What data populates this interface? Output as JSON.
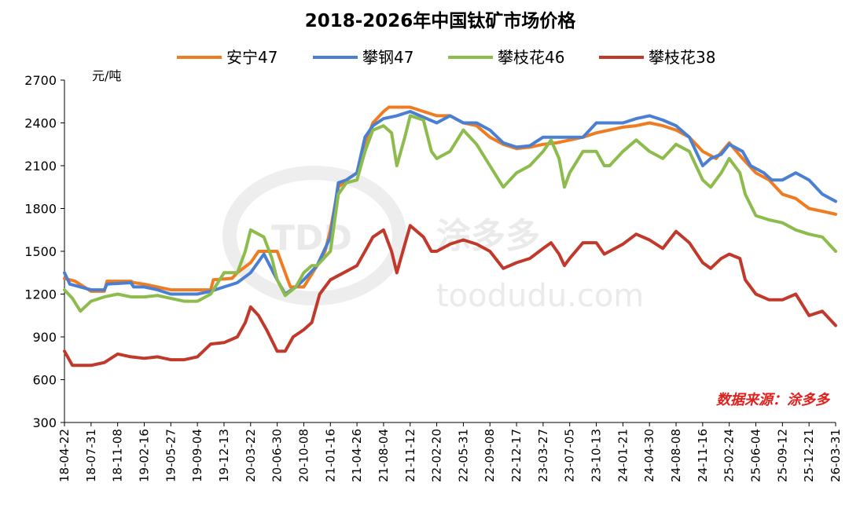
{
  "chart_data": {
    "type": "line",
    "title": "2018-2026年中国钛矿市场价格",
    "ylabel": "元/吨",
    "xlabel": "",
    "ylim": [
      300,
      2700
    ],
    "yticks": [
      "2700",
      "2400",
      "2100",
      "1800",
      "1500",
      "1200",
      "900",
      "600",
      "300"
    ],
    "xticks": [
      "18-04-22",
      "18-07-31",
      "18-11-08",
      "19-02-16",
      "19-05-27",
      "19-09-04",
      "19-12-13",
      "20-03-22",
      "20-06-30",
      "20-10-08",
      "21-01-16",
      "21-04-26",
      "21-08-04",
      "21-11-12",
      "22-02-20",
      "22-05-31",
      "22-09-08",
      "22-12-17",
      "23-03-27",
      "23-07-05",
      "23-10-13",
      "24-01-21",
      "24-04-30",
      "24-08-08",
      "24-11-16",
      "25-02-24",
      "25-06-04",
      "25-09-12",
      "25-12-21",
      "26-03-31"
    ],
    "legend_position": "top",
    "grid": false,
    "source_note": "数据来源：涂多多",
    "watermark": {
      "brand": "涂多多",
      "site": "toodudu.com"
    },
    "series": [
      {
        "name": "安宁47",
        "color": "#f07c22",
        "points": [
          [
            0,
            1310
          ],
          [
            0.4,
            1290
          ],
          [
            1,
            1220
          ],
          [
            1.5,
            1220
          ],
          [
            1.6,
            1290
          ],
          [
            2.5,
            1290
          ],
          [
            2.6,
            1280
          ],
          [
            3,
            1270
          ],
          [
            3.5,
            1250
          ],
          [
            4,
            1230
          ],
          [
            5,
            1230
          ],
          [
            5.5,
            1230
          ],
          [
            5.6,
            1300
          ],
          [
            6.3,
            1310
          ],
          [
            6.5,
            1350
          ],
          [
            7,
            1420
          ],
          [
            7.3,
            1500
          ],
          [
            8,
            1500
          ],
          [
            8.5,
            1250
          ],
          [
            9,
            1250
          ],
          [
            9.5,
            1400
          ],
          [
            9.8,
            1500
          ],
          [
            10,
            1650
          ],
          [
            10.3,
            1950
          ],
          [
            10.6,
            2000
          ],
          [
            11,
            2050
          ],
          [
            11.3,
            2250
          ],
          [
            11.6,
            2400
          ],
          [
            12,
            2480
          ],
          [
            12.2,
            2510
          ],
          [
            13,
            2510
          ],
          [
            13.5,
            2480
          ],
          [
            14,
            2450
          ],
          [
            14.5,
            2450
          ],
          [
            15,
            2400
          ],
          [
            15.5,
            2380
          ],
          [
            16,
            2300
          ],
          [
            16.5,
            2250
          ],
          [
            17,
            2220
          ],
          [
            17.5,
            2230
          ],
          [
            18,
            2250
          ],
          [
            18.5,
            2260
          ],
          [
            19,
            2280
          ],
          [
            19.5,
            2300
          ],
          [
            20,
            2330
          ],
          [
            20.5,
            2350
          ],
          [
            21,
            2370
          ],
          [
            21.5,
            2380
          ],
          [
            22,
            2400
          ],
          [
            22.5,
            2380
          ],
          [
            23,
            2350
          ],
          [
            23.5,
            2300
          ],
          [
            24,
            2200
          ],
          [
            24.5,
            2150
          ],
          [
            25,
            2260
          ],
          [
            25.5,
            2150
          ],
          [
            26,
            2050
          ],
          [
            26.5,
            2000
          ],
          [
            27,
            1900
          ],
          [
            27.5,
            1870
          ],
          [
            28,
            1800
          ],
          [
            28.5,
            1780
          ],
          [
            29,
            1760
          ]
        ]
      },
      {
        "name": "攀钢47",
        "color": "#4a7fd1",
        "points": [
          [
            0,
            1350
          ],
          [
            0.2,
            1270
          ],
          [
            1,
            1230
          ],
          [
            1.5,
            1230
          ],
          [
            1.6,
            1270
          ],
          [
            2.5,
            1280
          ],
          [
            2.6,
            1250
          ],
          [
            3,
            1250
          ],
          [
            3.5,
            1230
          ],
          [
            4,
            1200
          ],
          [
            5,
            1200
          ],
          [
            5.5,
            1220
          ],
          [
            6,
            1250
          ],
          [
            6.5,
            1280
          ],
          [
            7,
            1350
          ],
          [
            7.5,
            1480
          ],
          [
            8,
            1300
          ],
          [
            8.3,
            1200
          ],
          [
            8.7,
            1250
          ],
          [
            9,
            1300
          ],
          [
            9.5,
            1400
          ],
          [
            10,
            1600
          ],
          [
            10.3,
            1980
          ],
          [
            10.6,
            2000
          ],
          [
            11,
            2050
          ],
          [
            11.3,
            2300
          ],
          [
            11.6,
            2380
          ],
          [
            12,
            2430
          ],
          [
            12.5,
            2450
          ],
          [
            13,
            2480
          ],
          [
            14,
            2400
          ],
          [
            14.5,
            2450
          ],
          [
            15,
            2400
          ],
          [
            15.5,
            2400
          ],
          [
            16,
            2350
          ],
          [
            16.5,
            2260
          ],
          [
            17,
            2230
          ],
          [
            17.5,
            2240
          ],
          [
            18,
            2300
          ],
          [
            18.5,
            2300
          ],
          [
            19,
            2300
          ],
          [
            19.5,
            2300
          ],
          [
            20,
            2400
          ],
          [
            20.5,
            2400
          ],
          [
            21,
            2400
          ],
          [
            21.5,
            2430
          ],
          [
            22,
            2450
          ],
          [
            22.5,
            2420
          ],
          [
            23,
            2380
          ],
          [
            23.5,
            2300
          ],
          [
            24,
            2100
          ],
          [
            24.3,
            2150
          ],
          [
            24.7,
            2180
          ],
          [
            25,
            2250
          ],
          [
            25.5,
            2200
          ],
          [
            25.8,
            2100
          ],
          [
            26.3,
            2050
          ],
          [
            26.6,
            2000
          ],
          [
            27,
            2000
          ],
          [
            27.5,
            2050
          ],
          [
            28,
            2000
          ],
          [
            28.5,
            1900
          ],
          [
            29,
            1850
          ]
        ]
      },
      {
        "name": "攀枝花46",
        "color": "#8dbb4c",
        "points": [
          [
            0,
            1230
          ],
          [
            0.3,
            1170
          ],
          [
            0.6,
            1080
          ],
          [
            1,
            1150
          ],
          [
            1.5,
            1180
          ],
          [
            2,
            1200
          ],
          [
            2.5,
            1180
          ],
          [
            3,
            1180
          ],
          [
            3.5,
            1190
          ],
          [
            4,
            1170
          ],
          [
            4.5,
            1150
          ],
          [
            5,
            1150
          ],
          [
            5.5,
            1200
          ],
          [
            6,
            1350
          ],
          [
            6.5,
            1350
          ],
          [
            6.8,
            1500
          ],
          [
            7,
            1650
          ],
          [
            7.5,
            1600
          ],
          [
            7.8,
            1450
          ],
          [
            8,
            1300
          ],
          [
            8.3,
            1190
          ],
          [
            8.7,
            1250
          ],
          [
            9,
            1350
          ],
          [
            9.3,
            1400
          ],
          [
            9.5,
            1400
          ],
          [
            10,
            1500
          ],
          [
            10.3,
            1900
          ],
          [
            10.6,
            1980
          ],
          [
            11,
            2000
          ],
          [
            11.3,
            2200
          ],
          [
            11.6,
            2350
          ],
          [
            12,
            2380
          ],
          [
            12.3,
            2330
          ],
          [
            12.5,
            2100
          ],
          [
            12.8,
            2300
          ],
          [
            13,
            2450
          ],
          [
            13.5,
            2420
          ],
          [
            13.8,
            2200
          ],
          [
            14,
            2150
          ],
          [
            14.5,
            2200
          ],
          [
            15,
            2350
          ],
          [
            15.5,
            2250
          ],
          [
            16,
            2100
          ],
          [
            16.5,
            1950
          ],
          [
            17,
            2050
          ],
          [
            17.5,
            2100
          ],
          [
            18,
            2200
          ],
          [
            18.3,
            2280
          ],
          [
            18.6,
            2150
          ],
          [
            18.8,
            1950
          ],
          [
            19,
            2050
          ],
          [
            19.5,
            2200
          ],
          [
            20,
            2200
          ],
          [
            20.3,
            2100
          ],
          [
            20.5,
            2100
          ],
          [
            21,
            2200
          ],
          [
            21.5,
            2280
          ],
          [
            22,
            2200
          ],
          [
            22.5,
            2150
          ],
          [
            23,
            2250
          ],
          [
            23.5,
            2200
          ],
          [
            24,
            2000
          ],
          [
            24.3,
            1950
          ],
          [
            24.7,
            2050
          ],
          [
            25,
            2150
          ],
          [
            25.4,
            2050
          ],
          [
            25.6,
            1900
          ],
          [
            26,
            1750
          ],
          [
            26.5,
            1720
          ],
          [
            27,
            1700
          ],
          [
            27.5,
            1650
          ],
          [
            28,
            1620
          ],
          [
            28.5,
            1600
          ],
          [
            29,
            1500
          ]
        ]
      },
      {
        "name": "攀枝花38",
        "color": "#c0392b",
        "points": [
          [
            0,
            800
          ],
          [
            0.3,
            700
          ],
          [
            1,
            700
          ],
          [
            1.5,
            720
          ],
          [
            2,
            780
          ],
          [
            2.5,
            760
          ],
          [
            3,
            750
          ],
          [
            3.5,
            760
          ],
          [
            4,
            740
          ],
          [
            4.5,
            740
          ],
          [
            5,
            760
          ],
          [
            5.5,
            850
          ],
          [
            6,
            860
          ],
          [
            6.5,
            900
          ],
          [
            6.8,
            1000
          ],
          [
            7,
            1110
          ],
          [
            7.3,
            1050
          ],
          [
            7.6,
            950
          ],
          [
            8,
            800
          ],
          [
            8.3,
            800
          ],
          [
            8.6,
            900
          ],
          [
            9,
            950
          ],
          [
            9.3,
            1000
          ],
          [
            9.6,
            1200
          ],
          [
            10,
            1300
          ],
          [
            10.5,
            1350
          ],
          [
            11,
            1400
          ],
          [
            11.3,
            1500
          ],
          [
            11.6,
            1600
          ],
          [
            12,
            1650
          ],
          [
            12.3,
            1500
          ],
          [
            12.5,
            1350
          ],
          [
            12.8,
            1550
          ],
          [
            13,
            1680
          ],
          [
            13.5,
            1600
          ],
          [
            13.8,
            1500
          ],
          [
            14,
            1500
          ],
          [
            14.5,
            1550
          ],
          [
            15,
            1580
          ],
          [
            15.5,
            1550
          ],
          [
            16,
            1500
          ],
          [
            16.5,
            1380
          ],
          [
            17,
            1420
          ],
          [
            17.5,
            1450
          ],
          [
            18,
            1520
          ],
          [
            18.3,
            1560
          ],
          [
            18.6,
            1480
          ],
          [
            18.8,
            1400
          ],
          [
            19,
            1450
          ],
          [
            19.5,
            1560
          ],
          [
            20,
            1560
          ],
          [
            20.3,
            1480
          ],
          [
            20.5,
            1500
          ],
          [
            21,
            1550
          ],
          [
            21.5,
            1620
          ],
          [
            22,
            1580
          ],
          [
            22.5,
            1520
          ],
          [
            23,
            1640
          ],
          [
            23.5,
            1560
          ],
          [
            24,
            1420
          ],
          [
            24.3,
            1380
          ],
          [
            24.7,
            1450
          ],
          [
            25,
            1480
          ],
          [
            25.4,
            1450
          ],
          [
            25.6,
            1300
          ],
          [
            26,
            1200
          ],
          [
            26.5,
            1160
          ],
          [
            27,
            1160
          ],
          [
            27.5,
            1200
          ],
          [
            28,
            1050
          ],
          [
            28.5,
            1080
          ],
          [
            29,
            980
          ]
        ]
      }
    ]
  }
}
